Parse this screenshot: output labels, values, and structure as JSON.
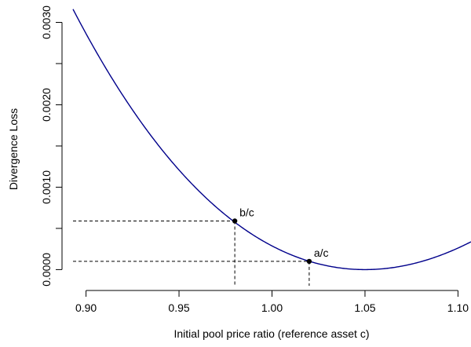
{
  "chart_data": {
    "type": "line",
    "xlabel": "Initial pool price ratio (reference asset c)",
    "ylabel": "Divergence Loss",
    "xlim": [
      0.893,
      1.107
    ],
    "ylim": [
      -0.00012,
      0.0031
    ],
    "x_ticks": [
      0.9,
      0.95,
      1.0,
      1.05,
      1.1
    ],
    "x_tick_labels": [
      "0.90",
      "0.95",
      "1.00",
      "1.05",
      "1.10"
    ],
    "y_ticks": [
      0.0,
      0.0005,
      0.001,
      0.0015,
      0.002,
      0.0025,
      0.003
    ],
    "y_tick_labels": [
      "0.0000",
      "",
      "0.0010",
      "",
      "0.0020",
      "",
      "0.0030"
    ],
    "curve": {
      "color": "#00008b",
      "minimum_x": 1.05,
      "x": [
        0.893,
        0.9,
        0.91,
        0.92,
        0.93,
        0.94,
        0.95,
        0.96,
        0.97,
        0.98,
        0.99,
        1.0,
        1.01,
        1.02,
        1.03,
        1.04,
        1.05,
        1.06,
        1.07,
        1.08,
        1.09,
        1.1,
        1.107
      ],
      "y": [
        0.00316,
        0.00283,
        0.00242,
        0.00204,
        0.00169,
        0.00137,
        0.00109,
        0.000845,
        0.000625,
        0.000592,
        0.000285,
        0.00017,
        8e-05,
        9.9e-05,
        3.4e-05,
        8e-06,
        0.0,
        9e-06,
        3.4e-05,
        7.3e-05,
        0.000124,
        0.000205,
        0.00036
      ]
    },
    "points": [
      {
        "label": "b/c",
        "x": 0.98,
        "y": 0.00059
      },
      {
        "label": "a/c",
        "x": 1.02,
        "y": 0.0001
      }
    ]
  }
}
